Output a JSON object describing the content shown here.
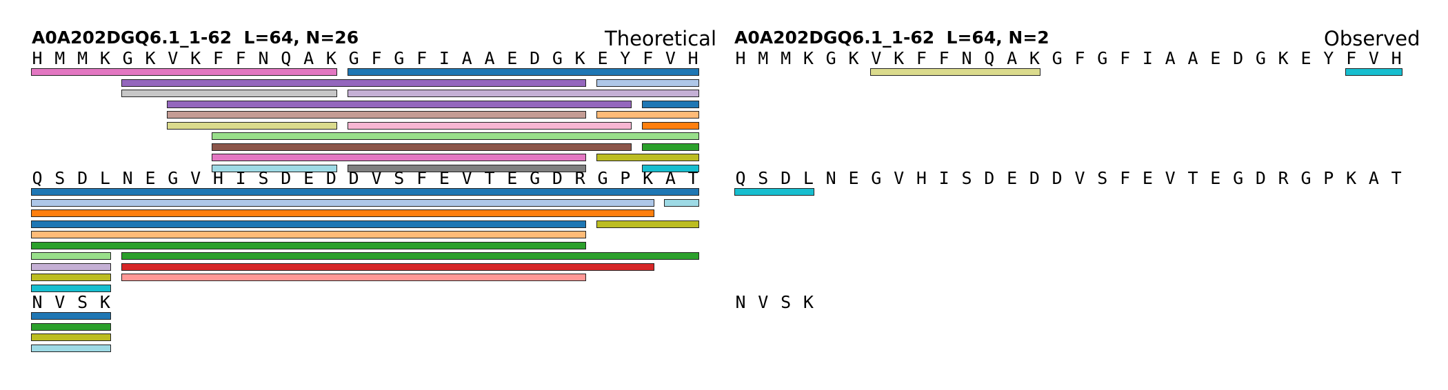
{
  "panels": [
    {
      "id": "theoretical",
      "title": "A0A202DGQ6.1_1-62  L=64, N=26",
      "corner_label": "Theoretical",
      "rows": [
        {
          "sequence": "HMMKGKVKFFNQAKGFGFIAAEDGKEYFVH",
          "peptides": [
            {
              "start": 1,
              "end": 14,
              "lane": 0,
              "color": "#e377c2"
            },
            {
              "start": 15,
              "end": 30,
              "lane": 0,
              "color": "#1f77b4"
            },
            {
              "start": 5,
              "end": 25,
              "lane": 1,
              "color": "#9467bd"
            },
            {
              "start": 26,
              "end": 30,
              "lane": 1,
              "color": "#aec7e8"
            },
            {
              "start": 5,
              "end": 14,
              "lane": 2,
              "color": "#c7c7c7"
            },
            {
              "start": 15,
              "end": 30,
              "lane": 2,
              "color": "#c5b0d5"
            },
            {
              "start": 7,
              "end": 27,
              "lane": 3,
              "color": "#9467bd"
            },
            {
              "start": 28,
              "end": 30,
              "lane": 3,
              "color": "#1f77b4"
            },
            {
              "start": 7,
              "end": 25,
              "lane": 4,
              "color": "#c49c94"
            },
            {
              "start": 26,
              "end": 30,
              "lane": 4,
              "color": "#ffbb78"
            },
            {
              "start": 7,
              "end": 14,
              "lane": 5,
              "color": "#dbdb8d"
            },
            {
              "start": 15,
              "end": 27,
              "lane": 5,
              "color": "#f7b6d2"
            },
            {
              "start": 28,
              "end": 30,
              "lane": 5,
              "color": "#ff7f0e"
            },
            {
              "start": 9,
              "end": 30,
              "lane": 6,
              "color": "#98df8a"
            },
            {
              "start": 9,
              "end": 27,
              "lane": 7,
              "color": "#8c564b"
            },
            {
              "start": 28,
              "end": 30,
              "lane": 7,
              "color": "#2ca02c"
            },
            {
              "start": 9,
              "end": 25,
              "lane": 8,
              "color": "#e377c2"
            },
            {
              "start": 26,
              "end": 30,
              "lane": 8,
              "color": "#bcbd22"
            },
            {
              "start": 9,
              "end": 14,
              "lane": 9,
              "color": "#9edae5"
            },
            {
              "start": 15,
              "end": 25,
              "lane": 9,
              "color": "#7f7f7f"
            },
            {
              "start": 28,
              "end": 30,
              "lane": 9,
              "color": "#17becf"
            }
          ]
        },
        {
          "sequence": "QSDLNEGVHISDEDDVSFEVTEGDRGPKAT",
          "peptides": [
            {
              "start": 31,
              "end": 60,
              "lane": 0,
              "color": "#1f77b4"
            },
            {
              "start": 31,
              "end": 58,
              "lane": 1,
              "color": "#aec7e8"
            },
            {
              "start": 59,
              "end": 60,
              "lane": 1,
              "color": "#9edae5"
            },
            {
              "start": 31,
              "end": 58,
              "lane": 2,
              "color": "#ff7f0e"
            },
            {
              "start": 31,
              "end": 55,
              "lane": 3,
              "color": "#1f77b4"
            },
            {
              "start": 56,
              "end": 60,
              "lane": 3,
              "color": "#bcbd22"
            },
            {
              "start": 31,
              "end": 55,
              "lane": 4,
              "color": "#ffbb78"
            },
            {
              "start": 31,
              "end": 55,
              "lane": 5,
              "color": "#2ca02c"
            },
            {
              "start": 31,
              "end": 34,
              "lane": 6,
              "color": "#98df8a"
            },
            {
              "start": 35,
              "end": 60,
              "lane": 6,
              "color": "#2ca02c"
            },
            {
              "start": 31,
              "end": 34,
              "lane": 7,
              "color": "#c5b0d5"
            },
            {
              "start": 35,
              "end": 58,
              "lane": 7,
              "color": "#d62728"
            },
            {
              "start": 31,
              "end": 34,
              "lane": 8,
              "color": "#bcbd22"
            },
            {
              "start": 35,
              "end": 55,
              "lane": 8,
              "color": "#ff9896"
            },
            {
              "start": 31,
              "end": 34,
              "lane": 9,
              "color": "#17becf"
            }
          ]
        },
        {
          "sequence": "NVSK",
          "peptides": [
            {
              "start": 61,
              "end": 64,
              "lane": 0,
              "color": "#1f77b4"
            },
            {
              "start": 61,
              "end": 64,
              "lane": 1,
              "color": "#2ca02c"
            },
            {
              "start": 61,
              "end": 64,
              "lane": 2,
              "color": "#bcbd22"
            },
            {
              "start": 61,
              "end": 64,
              "lane": 3,
              "color": "#9edae5"
            }
          ]
        }
      ]
    },
    {
      "id": "observed",
      "title": "A0A202DGQ6.1_1-62  L=64, N=2",
      "corner_label": "Observed",
      "rows": [
        {
          "sequence": "HMMKGKVKFFNQAKGFGFIAAEDGKEYFVH",
          "peptides": [
            {
              "start": 7,
              "end": 14,
              "lane": 0,
              "color": "#dbdb8d"
            },
            {
              "start": 28,
              "end": 30,
              "lane": 0,
              "color": "#17becf"
            }
          ]
        },
        {
          "sequence": "QSDLNEGVHISDEDDVSFEVTEGDRGPKAT",
          "peptides": [
            {
              "start": 31,
              "end": 34,
              "lane": 0,
              "color": "#17becf"
            }
          ]
        },
        {
          "sequence": "NVSK",
          "peptides": []
        }
      ]
    }
  ]
}
